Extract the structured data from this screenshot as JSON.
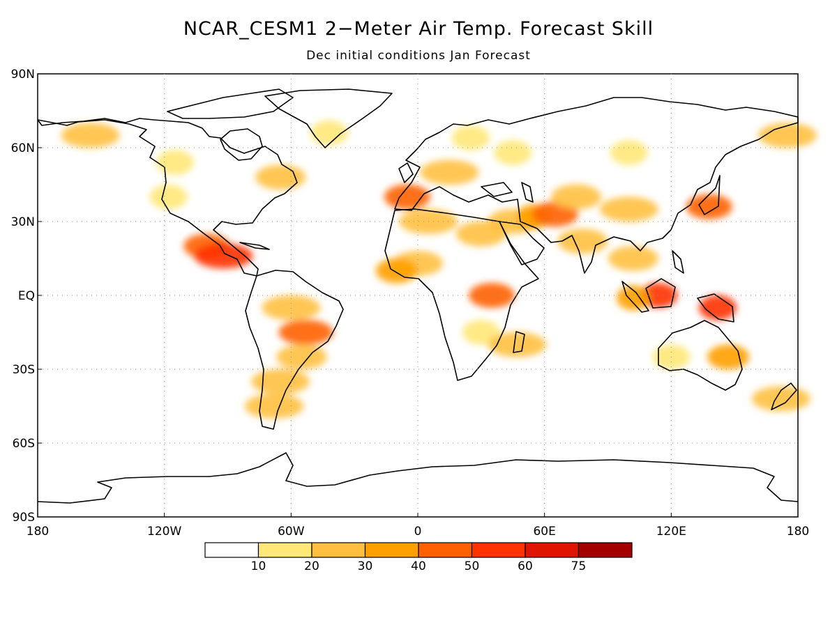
{
  "title": "NCAR_CESM1 2−Meter Air Temp. Forecast Skill",
  "subtitle": "Dec initial conditions   Jan Forecast",
  "axes": {
    "lat_labels": [
      "90N",
      "60N",
      "30N",
      "EQ",
      "30S",
      "60S",
      "90S"
    ],
    "lon_labels": [
      "180",
      "120W",
      "60W",
      "0",
      "60E",
      "120E",
      "180"
    ],
    "lat_values": [
      90,
      60,
      30,
      0,
      -30,
      -60,
      -90
    ],
    "lon_values": [
      -180,
      -120,
      -60,
      0,
      60,
      120,
      180
    ],
    "grid": "dotted"
  },
  "colorbar": {
    "colors": [
      "#ffffff",
      "#ffe878",
      "#ffc040",
      "#ffa000",
      "#ff6000",
      "#ff3200",
      "#e11400",
      "#a50000"
    ],
    "labels": [
      "10",
      "20",
      "30",
      "40",
      "50",
      "60",
      "75"
    ]
  },
  "chart_data": {
    "type": "heatmap",
    "region": "global",
    "xlim": [
      -180,
      180
    ],
    "ylim": [
      -90,
      90
    ],
    "thresholds": [
      10,
      20,
      30,
      40,
      50,
      60,
      75
    ],
    "skill_regions": [
      {
        "name": "Alaska",
        "lon": -155,
        "lat": 65,
        "value": 20
      },
      {
        "name": "Western Canada",
        "lon": -115,
        "lat": 54,
        "value": 15
      },
      {
        "name": "Western US",
        "lon": -118,
        "lat": 40,
        "value": 15
      },
      {
        "name": "Mexico",
        "lon": -100,
        "lat": 20,
        "value": 45
      },
      {
        "name": "Central Mexico",
        "lon": -92,
        "lat": 16,
        "value": 55
      },
      {
        "name": "Eastern Canada",
        "lon": -65,
        "lat": 48,
        "value": 25
      },
      {
        "name": "Greenland",
        "lon": -42,
        "lat": 66,
        "value": 15
      },
      {
        "name": "Amazon",
        "lon": -60,
        "lat": -5,
        "value": 20
      },
      {
        "name": "Central Brazil",
        "lon": -53,
        "lat": -15,
        "value": 40
      },
      {
        "name": "Southern Brazil",
        "lon": -55,
        "lat": -25,
        "value": 25
      },
      {
        "name": "Argentina",
        "lon": -65,
        "lat": -35,
        "value": 20
      },
      {
        "name": "Patagonia",
        "lon": -68,
        "lat": -45,
        "value": 20
      },
      {
        "name": "Iberia",
        "lon": -5,
        "lat": 40,
        "value": 45
      },
      {
        "name": "Europe",
        "lon": 15,
        "lat": 50,
        "value": 20
      },
      {
        "name": "Scandinavia",
        "lon": 25,
        "lat": 64,
        "value": 15
      },
      {
        "name": "Russia",
        "lon": 45,
        "lat": 58,
        "value": 15
      },
      {
        "name": "North Africa",
        "lon": 5,
        "lat": 30,
        "value": 20
      },
      {
        "name": "Egypt",
        "lon": 30,
        "lat": 25,
        "value": 25
      },
      {
        "name": "Sahel",
        "lon": 0,
        "lat": 13,
        "value": 25
      },
      {
        "name": "West Africa",
        "lon": -10,
        "lat": 10,
        "value": 30
      },
      {
        "name": "East Africa",
        "lon": 35,
        "lat": 0,
        "value": 45
      },
      {
        "name": "Southern Africa",
        "lon": 30,
        "lat": -15,
        "value": 15
      },
      {
        "name": "Madagascar",
        "lon": 47,
        "lat": -20,
        "value": 20
      },
      {
        "name": "Middle East",
        "lon": 45,
        "lat": 30,
        "value": 25
      },
      {
        "name": "Iran",
        "lon": 55,
        "lat": 32,
        "value": 35
      },
      {
        "name": "Afghanistan",
        "lon": 65,
        "lat": 33,
        "value": 45
      },
      {
        "name": "Central Asia",
        "lon": 75,
        "lat": 40,
        "value": 25
      },
      {
        "name": "India",
        "lon": 78,
        "lat": 22,
        "value": 25
      },
      {
        "name": "China",
        "lon": 100,
        "lat": 35,
        "value": 20
      },
      {
        "name": "Siberia",
        "lon": 100,
        "lat": 58,
        "value": 15
      },
      {
        "name": "Indochina",
        "lon": 102,
        "lat": 15,
        "value": 25
      },
      {
        "name": "Japan",
        "lon": 138,
        "lat": 36,
        "value": 45
      },
      {
        "name": "Borneo",
        "lon": 114,
        "lat": 0,
        "value": 50
      },
      {
        "name": "Sumatra",
        "lon": 102,
        "lat": -1,
        "value": 35
      },
      {
        "name": "New Guinea",
        "lon": 142,
        "lat": -5,
        "value": 50
      },
      {
        "name": "Western Australia",
        "lon": 120,
        "lat": -25,
        "value": 15
      },
      {
        "name": "Eastern Australia",
        "lon": 147,
        "lat": -25,
        "value": 30
      },
      {
        "name": "Chukotka",
        "lon": 175,
        "lat": 65,
        "value": 20
      },
      {
        "name": "New Zealand",
        "lon": 172,
        "lat": -42,
        "value": 20
      }
    ]
  }
}
